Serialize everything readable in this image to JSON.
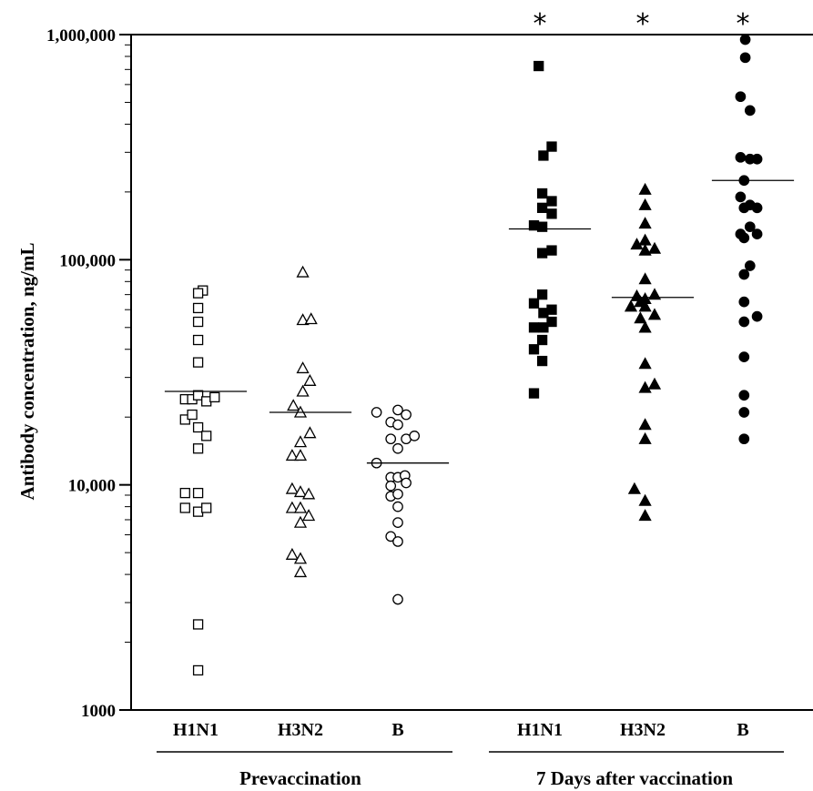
{
  "chart_data": {
    "type": "scatter",
    "ylabel": "Antibody concentration, ng/mL",
    "yscale": "log",
    "ylim": [
      1000,
      1000000
    ],
    "yticks": [
      {
        "value": 1000,
        "label": "1000"
      },
      {
        "value": 10000,
        "label": "10,000"
      },
      {
        "value": 100000,
        "label": "100,000"
      },
      {
        "value": 1000000,
        "label": "1,000,000"
      }
    ],
    "groups": [
      {
        "label": "Prevaccination",
        "categories": [
          "H1N1",
          "H3N2",
          "B"
        ]
      },
      {
        "label": "7 Days after vaccination",
        "categories": [
          "H1N1",
          "H3N2",
          "B"
        ]
      }
    ],
    "significance_marker": "*",
    "series": [
      {
        "category": "H1N1",
        "group": "Prevaccination",
        "marker": "open-square",
        "median": 26000,
        "significant": false,
        "points": [
          {
            "offset": 0.3,
            "value": 73000
          },
          {
            "offset": 0.1,
            "value": 71000
          },
          {
            "offset": 0.1,
            "value": 61000
          },
          {
            "offset": 0.1,
            "value": 53000
          },
          {
            "offset": 0.1,
            "value": 44000
          },
          {
            "offset": 0.1,
            "value": 35000
          },
          {
            "offset": -0.45,
            "value": 24000
          },
          {
            "offset": -0.15,
            "value": 24000
          },
          {
            "offset": 0.1,
            "value": 25000
          },
          {
            "offset": 0.45,
            "value": 23500
          },
          {
            "offset": 0.8,
            "value": 24500
          },
          {
            "offset": -0.45,
            "value": 19500
          },
          {
            "offset": -0.15,
            "value": 20500
          },
          {
            "offset": 0.1,
            "value": 18000
          },
          {
            "offset": 0.45,
            "value": 16500
          },
          {
            "offset": 0.1,
            "value": 14500
          },
          {
            "offset": -0.45,
            "value": 9200
          },
          {
            "offset": 0.1,
            "value": 9200
          },
          {
            "offset": -0.45,
            "value": 7900
          },
          {
            "offset": 0.1,
            "value": 7600
          },
          {
            "offset": 0.45,
            "value": 7900
          },
          {
            "offset": 0.1,
            "value": 2400
          },
          {
            "offset": 0.1,
            "value": 1500
          }
        ]
      },
      {
        "category": "H3N2",
        "group": "Prevaccination",
        "marker": "open-triangle",
        "median": 21000,
        "significant": false,
        "points": [
          {
            "offset": 0.1,
            "value": 88000
          },
          {
            "offset": 0.1,
            "value": 54000
          },
          {
            "offset": 0.45,
            "value": 54500
          },
          {
            "offset": 0.1,
            "value": 33000
          },
          {
            "offset": 0.4,
            "value": 29000
          },
          {
            "offset": 0.1,
            "value": 26000
          },
          {
            "offset": -0.3,
            "value": 22500
          },
          {
            "offset": 0.0,
            "value": 21000
          },
          {
            "offset": 0.4,
            "value": 17000
          },
          {
            "offset": 0.0,
            "value": 15500
          },
          {
            "offset": -0.35,
            "value": 13500
          },
          {
            "offset": 0.0,
            "value": 13500
          },
          {
            "offset": -0.35,
            "value": 9600
          },
          {
            "offset": 0.0,
            "value": 9300
          },
          {
            "offset": 0.35,
            "value": 9100
          },
          {
            "offset": -0.35,
            "value": 7900
          },
          {
            "offset": 0.0,
            "value": 7900
          },
          {
            "offset": 0.35,
            "value": 7300
          },
          {
            "offset": 0.0,
            "value": 6800
          },
          {
            "offset": -0.35,
            "value": 4900
          },
          {
            "offset": 0.0,
            "value": 4700
          },
          {
            "offset": 0.0,
            "value": 4100
          }
        ]
      },
      {
        "category": "B",
        "group": "Prevaccination",
        "marker": "open-circle",
        "median": 12500,
        "significant": false,
        "points": [
          {
            "offset": -0.9,
            "value": 21000
          },
          {
            "offset": -0.3,
            "value": 19000
          },
          {
            "offset": 0.0,
            "value": 21500
          },
          {
            "offset": 0.35,
            "value": 20500
          },
          {
            "offset": 0.0,
            "value": 18500
          },
          {
            "offset": -0.3,
            "value": 16000
          },
          {
            "offset": 0.35,
            "value": 16000
          },
          {
            "offset": 0.7,
            "value": 16500
          },
          {
            "offset": 0.0,
            "value": 14500
          },
          {
            "offset": -0.9,
            "value": 12500
          },
          {
            "offset": -0.3,
            "value": 10800
          },
          {
            "offset": 0.0,
            "value": 10800
          },
          {
            "offset": 0.3,
            "value": 11000
          },
          {
            "offset": -0.3,
            "value": 9900
          },
          {
            "offset": 0.35,
            "value": 10200
          },
          {
            "offset": -0.3,
            "value": 8900
          },
          {
            "offset": 0.0,
            "value": 9100
          },
          {
            "offset": 0.0,
            "value": 8000
          },
          {
            "offset": 0.0,
            "value": 6800
          },
          {
            "offset": -0.3,
            "value": 5900
          },
          {
            "offset": 0.0,
            "value": 5600
          },
          {
            "offset": 0.0,
            "value": 3100
          }
        ]
      },
      {
        "category": "H1N1",
        "group": "7 Days after vaccination",
        "marker": "filled-square",
        "median": 137000,
        "significant": true,
        "points": [
          {
            "offset": -0.05,
            "value": 725000
          },
          {
            "offset": 0.5,
            "value": 318000
          },
          {
            "offset": 0.15,
            "value": 290000
          },
          {
            "offset": 0.1,
            "value": 197000
          },
          {
            "offset": 0.5,
            "value": 182000
          },
          {
            "offset": 0.1,
            "value": 170000
          },
          {
            "offset": 0.5,
            "value": 160000
          },
          {
            "offset": -0.25,
            "value": 142000
          },
          {
            "offset": 0.1,
            "value": 140000
          },
          {
            "offset": 0.5,
            "value": 110000
          },
          {
            "offset": 0.1,
            "value": 107000
          },
          {
            "offset": 0.1,
            "value": 70000
          },
          {
            "offset": -0.25,
            "value": 64000
          },
          {
            "offset": 0.15,
            "value": 58000
          },
          {
            "offset": 0.5,
            "value": 60000
          },
          {
            "offset": -0.25,
            "value": 50000
          },
          {
            "offset": 0.15,
            "value": 50000
          },
          {
            "offset": 0.5,
            "value": 53000
          },
          {
            "offset": 0.1,
            "value": 44000
          },
          {
            "offset": -0.25,
            "value": 40000
          },
          {
            "offset": 0.1,
            "value": 35500
          },
          {
            "offset": -0.25,
            "value": 25500
          }
        ]
      },
      {
        "category": "H3N2",
        "group": "7 Days after vaccination",
        "marker": "filled-triangle",
        "median": 68000,
        "significant": true,
        "points": [
          {
            "offset": 0.1,
            "value": 205000
          },
          {
            "offset": 0.1,
            "value": 175000
          },
          {
            "offset": 0.1,
            "value": 145000
          },
          {
            "offset": 0.1,
            "value": 122000
          },
          {
            "offset": -0.25,
            "value": 117000
          },
          {
            "offset": 0.5,
            "value": 112000
          },
          {
            "offset": 0.1,
            "value": 110000
          },
          {
            "offset": 0.1,
            "value": 82000
          },
          {
            "offset": -0.25,
            "value": 69000
          },
          {
            "offset": 0.1,
            "value": 67000
          },
          {
            "offset": 0.5,
            "value": 70000
          },
          {
            "offset": -0.1,
            "value": 65000
          },
          {
            "offset": -0.5,
            "value": 62000
          },
          {
            "offset": 0.1,
            "value": 62000
          },
          {
            "offset": -0.1,
            "value": 55000
          },
          {
            "offset": 0.5,
            "value": 57000
          },
          {
            "offset": 0.1,
            "value": 50000
          },
          {
            "offset": 0.1,
            "value": 34500
          },
          {
            "offset": 0.1,
            "value": 27000
          },
          {
            "offset": 0.5,
            "value": 28000
          },
          {
            "offset": 0.1,
            "value": 18500
          },
          {
            "offset": 0.1,
            "value": 16000
          },
          {
            "offset": -0.35,
            "value": 9600
          },
          {
            "offset": 0.1,
            "value": 8500
          },
          {
            "offset": 0.1,
            "value": 7300
          }
        ]
      },
      {
        "category": "B",
        "group": "7 Days after vaccination",
        "marker": "filled-circle",
        "median": 225000,
        "significant": true,
        "points": [
          {
            "offset": 0.1,
            "value": 950000
          },
          {
            "offset": 0.1,
            "value": 790000
          },
          {
            "offset": -0.1,
            "value": 530000
          },
          {
            "offset": 0.3,
            "value": 460000
          },
          {
            "offset": -0.1,
            "value": 285000
          },
          {
            "offset": 0.3,
            "value": 280000
          },
          {
            "offset": 0.6,
            "value": 280000
          },
          {
            "offset": 0.05,
            "value": 225000
          },
          {
            "offset": -0.1,
            "value": 190000
          },
          {
            "offset": 0.3,
            "value": 175000
          },
          {
            "offset": 0.05,
            "value": 170000
          },
          {
            "offset": 0.6,
            "value": 170000
          },
          {
            "offset": -0.1,
            "value": 130000
          },
          {
            "offset": 0.3,
            "value": 140000
          },
          {
            "offset": 0.05,
            "value": 125000
          },
          {
            "offset": 0.6,
            "value": 130000
          },
          {
            "offset": 0.3,
            "value": 94000
          },
          {
            "offset": 0.05,
            "value": 86000
          },
          {
            "offset": 0.05,
            "value": 65000
          },
          {
            "offset": 0.05,
            "value": 53000
          },
          {
            "offset": 0.6,
            "value": 56000
          },
          {
            "offset": 0.05,
            "value": 37000
          },
          {
            "offset": 0.05,
            "value": 25000
          },
          {
            "offset": 0.05,
            "value": 21000
          },
          {
            "offset": 0.05,
            "value": 16000
          }
        ]
      }
    ]
  }
}
